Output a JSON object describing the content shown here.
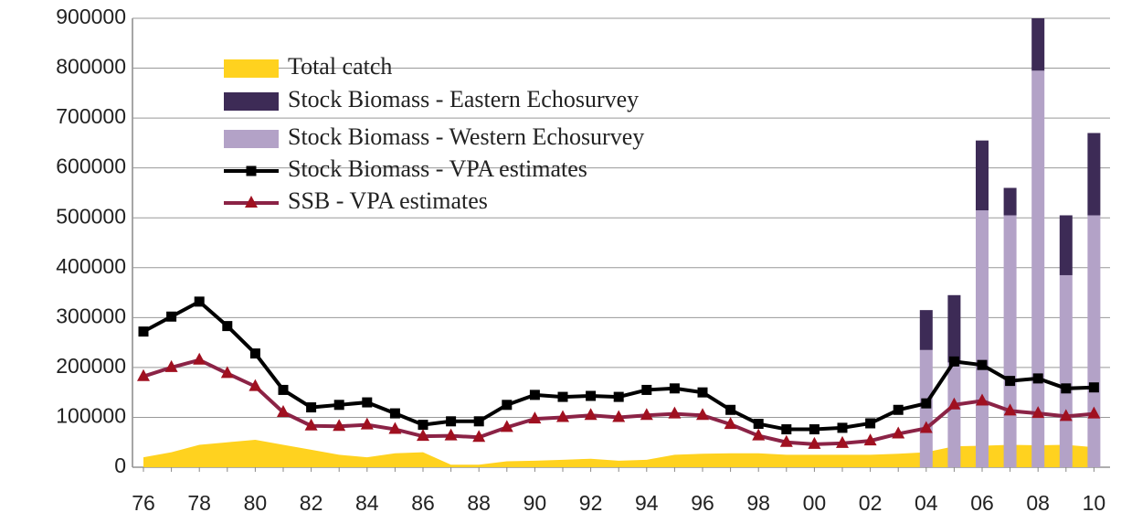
{
  "chart_data": {
    "type": "combo",
    "categories": [
      "76",
      null,
      "78",
      null,
      "80",
      null,
      "82",
      null,
      "84",
      null,
      "86",
      null,
      "88",
      null,
      "90",
      null,
      "92",
      null,
      "94",
      null,
      "96",
      null,
      "98",
      null,
      "00",
      null,
      "02",
      null,
      "04",
      null,
      "06",
      null,
      "08",
      null,
      "10"
    ],
    "series": [
      {
        "name": "Total catch",
        "type": "area",
        "color": "#ffd21f",
        "values": [
          20000,
          30000,
          45000,
          50000,
          55000,
          45000,
          35000,
          25000,
          20000,
          28000,
          30000,
          5000,
          5000,
          12000,
          13000,
          15000,
          17000,
          13000,
          15000,
          25000,
          27000,
          28000,
          28000,
          25000,
          25000,
          25000,
          25000,
          27000,
          30000,
          42000,
          43000,
          45000,
          44000,
          45000,
          40000
        ]
      },
      {
        "name": "Stock Biomass - Eastern Echosurvey",
        "type": "bar",
        "color": "#3d2b56",
        "values": [
          null,
          null,
          null,
          null,
          null,
          null,
          null,
          null,
          null,
          null,
          null,
          null,
          null,
          null,
          null,
          null,
          null,
          null,
          null,
          null,
          null,
          null,
          null,
          null,
          null,
          null,
          null,
          null,
          80000,
          135000,
          140000,
          55000,
          105000,
          120000,
          165000
        ]
      },
      {
        "name": "Stock Biomass - Western Echosurvey",
        "type": "bar",
        "color": "#b3a2c7",
        "values": [
          null,
          null,
          null,
          null,
          null,
          null,
          null,
          null,
          null,
          null,
          null,
          null,
          null,
          null,
          null,
          null,
          null,
          null,
          null,
          null,
          null,
          null,
          null,
          null,
          null,
          null,
          null,
          null,
          235000,
          210000,
          515000,
          505000,
          795000,
          385000,
          505000
        ]
      },
      {
        "name": "Stock Biomass - VPA estimates",
        "type": "line",
        "color": "#000000",
        "marker": "square",
        "values": [
          272000,
          302000,
          332000,
          283000,
          228000,
          155000,
          120000,
          125000,
          130000,
          108000,
          85000,
          92000,
          92000,
          125000,
          145000,
          141000,
          143000,
          141000,
          155000,
          158000,
          150000,
          115000,
          87000,
          76000,
          76000,
          79000,
          88000,
          115000,
          128000,
          212000,
          205000,
          173000,
          178000,
          158000,
          160000
        ]
      },
      {
        "name": "SSB - VPA estimates",
        "type": "line",
        "color": "#8b2346",
        "marker": "triangle",
        "values": [
          182000,
          200000,
          215000,
          188000,
          162000,
          110000,
          83000,
          82000,
          85000,
          76000,
          62000,
          63000,
          60000,
          80000,
          97000,
          100000,
          104000,
          100000,
          104000,
          107000,
          104000,
          86000,
          63000,
          50000,
          46000,
          48000,
          53000,
          67000,
          78000,
          125000,
          133000,
          113000,
          108000,
          102000,
          107000
        ]
      }
    ],
    "ylim": [
      0,
      900000
    ],
    "yticks": [
      0,
      100000,
      200000,
      300000,
      400000,
      500000,
      600000,
      700000,
      800000,
      900000
    ],
    "grid": true,
    "legend": "top-left"
  }
}
